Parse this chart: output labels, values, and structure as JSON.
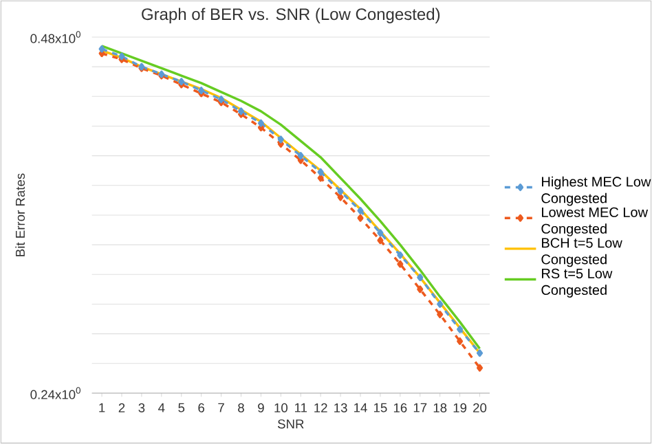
{
  "chart_data": {
    "type": "line",
    "title": "Graph of BER vs. SNR (Low Congested)",
    "xlabel": "SNR",
    "ylabel": "Bit Error Rates",
    "categories": [
      "1",
      "2",
      "3",
      "4",
      "5",
      "6",
      "7",
      "8",
      "9",
      "10",
      "11",
      "12",
      "13",
      "14",
      "15",
      "16",
      "17",
      "18",
      "19",
      "20"
    ],
    "series": [
      {
        "name": "Highest MEC Low Congested",
        "color": "#5b9bd5",
        "marker": "diamond",
        "line_style": "dashed",
        "values": [
          0.472,
          0.467,
          0.46,
          0.455,
          0.45,
          0.444,
          0.438,
          0.43,
          0.422,
          0.411,
          0.4,
          0.389,
          0.376,
          0.363,
          0.348,
          0.333,
          0.318,
          0.3,
          0.283,
          0.267
        ]
      },
      {
        "name": "Lowest MEC Low Congested",
        "color": "#ed5a1e",
        "marker": "diamond",
        "line_style": "dashed",
        "values": [
          0.469,
          0.465,
          0.459,
          0.454,
          0.448,
          0.442,
          0.436,
          0.428,
          0.419,
          0.408,
          0.397,
          0.385,
          0.372,
          0.358,
          0.343,
          0.327,
          0.31,
          0.293,
          0.275,
          0.257
        ]
      },
      {
        "name": "BCH t=5 Low Congested",
        "color": "#ffc000",
        "marker": "none",
        "line_style": "solid",
        "values": [
          0.471,
          0.466,
          0.46,
          0.455,
          0.45,
          0.445,
          0.439,
          0.431,
          0.423,
          0.412,
          0.401,
          0.39,
          0.377,
          0.364,
          0.349,
          0.334,
          0.318,
          0.301,
          0.284,
          0.267
        ]
      },
      {
        "name": "RS t=5 Low Congested",
        "color": "#66cc22",
        "marker": "none",
        "line_style": "solid",
        "values": [
          0.474,
          0.469,
          0.464,
          0.459,
          0.454,
          0.449,
          0.443,
          0.437,
          0.43,
          0.421,
          0.41,
          0.399,
          0.385,
          0.371,
          0.356,
          0.34,
          0.323,
          0.305,
          0.288,
          0.27
        ]
      }
    ],
    "ylim": [
      0.24,
      0.48
    ],
    "yticks": [
      {
        "value": 0.24,
        "label": "0.24x10$^{0}$"
      },
      {
        "value": 0.26,
        "label": null
      },
      {
        "value": 0.28,
        "label": null
      },
      {
        "value": 0.3,
        "label": null
      },
      {
        "value": 0.32,
        "label": null
      },
      {
        "value": 0.34,
        "label": null
      },
      {
        "value": 0.36,
        "label": null
      },
      {
        "value": 0.38,
        "label": null
      },
      {
        "value": 0.4,
        "label": null
      },
      {
        "value": 0.42,
        "label": null
      },
      {
        "value": 0.44,
        "label": null
      },
      {
        "value": 0.46,
        "label": null
      },
      {
        "value": 0.48,
        "label": "0.48x10$^{0}$"
      }
    ],
    "grid": "y",
    "legend": "right"
  }
}
